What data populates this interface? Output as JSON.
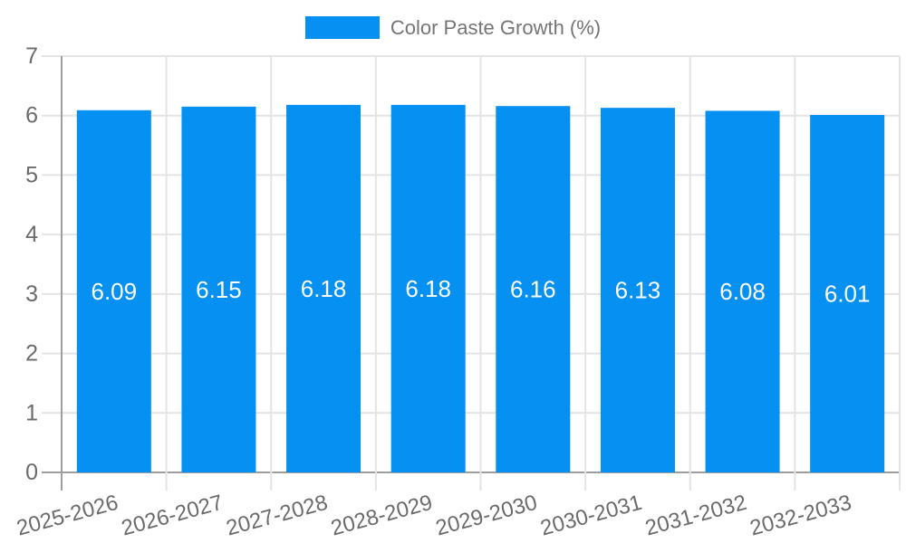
{
  "legend": {
    "label": "Color Paste Growth (%)"
  },
  "chart_data": {
    "type": "bar",
    "title": "",
    "series_name": "Color Paste Growth (%)",
    "categories": [
      "2025-2026",
      "2026-2027",
      "2027-2028",
      "2028-2029",
      "2029-2030",
      "2030-2031",
      "2031-2032",
      "2032-2033"
    ],
    "values": [
      6.09,
      6.15,
      6.18,
      6.18,
      6.16,
      6.13,
      6.08,
      6.01
    ],
    "value_labels": [
      "6.09",
      "6.15",
      "6.18",
      "6.18",
      "6.16",
      "6.13",
      "6.08",
      "6.01"
    ],
    "xlabel": "",
    "ylabel": "",
    "ylim": [
      0,
      7
    ],
    "y_ticks": [
      0,
      1,
      2,
      3,
      4,
      5,
      6,
      7
    ],
    "grid": true,
    "legend_position": "top-center",
    "value_label_position": "inside-center",
    "x_label_rotation_deg": -15,
    "colors": {
      "bar": "#0590f2",
      "value_label": "#ffffff",
      "axis": "#9e9e9e",
      "grid": "#e4e4e4",
      "axis_text": "#6b6b6b",
      "legend_text": "#757575",
      "background": "#ffffff"
    }
  }
}
